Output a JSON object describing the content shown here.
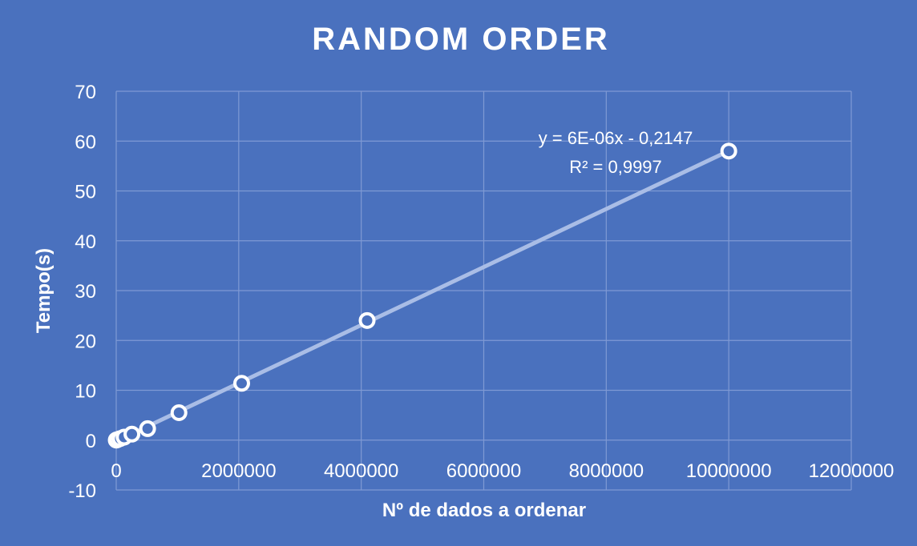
{
  "chart_data": {
    "type": "scatter",
    "title": "RANDOM ORDER",
    "xlabel": "Nº de dados a ordenar",
    "ylabel": "Tempo(s)",
    "xlim": [
      0,
      12000000
    ],
    "ylim": [
      -10,
      70
    ],
    "x_ticks": [
      "0",
      "2000000",
      "4000000",
      "6000000",
      "8000000",
      "10000000",
      "12000000"
    ],
    "y_ticks": [
      "-10",
      "0",
      "10",
      "20",
      "30",
      "40",
      "50",
      "60",
      "70"
    ],
    "grid": true,
    "series": [
      {
        "x": [
          1000,
          4000,
          16000,
          64000,
          128000,
          256000,
          512000,
          1024000,
          2048000,
          4096000,
          10000000
        ],
        "y": [
          0.01,
          0.03,
          0.08,
          0.3,
          0.6,
          1.2,
          2.3,
          5.5,
          11.4,
          24.0,
          58.0
        ]
      }
    ],
    "trendline": {
      "type": "linear",
      "equation": "y = 6E-06x - 0,2147",
      "r_squared": "R² = 0,9997",
      "slope": 5.825e-06,
      "intercept": -0.2147
    },
    "colors": {
      "background": "#4a71be",
      "grid": "#7f9ad4",
      "trendline": "#a9bde6",
      "marker": "#ffffff"
    }
  }
}
